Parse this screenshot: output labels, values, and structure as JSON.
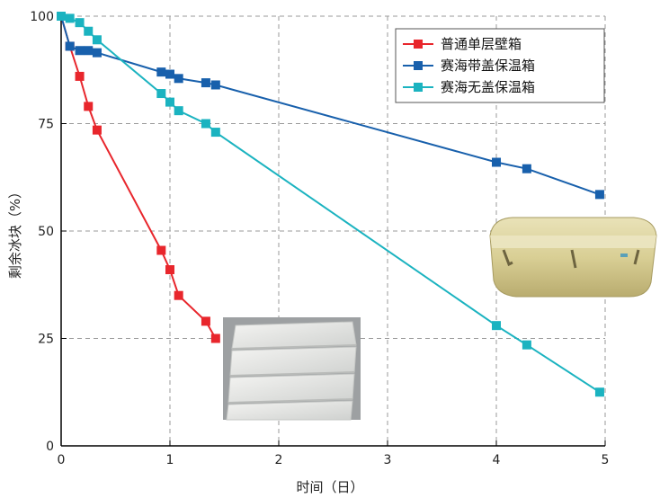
{
  "chart_data": {
    "type": "line",
    "xlabel": "时间（日）",
    "ylabel": "剩余冰块（%）",
    "xlim": [
      0,
      5
    ],
    "ylim": [
      0,
      100
    ],
    "x_ticks": [
      "0",
      "1",
      "2",
      "3",
      "4",
      "5"
    ],
    "y_ticks": [
      "0",
      "25",
      "50",
      "75",
      "100"
    ],
    "grid": true,
    "legend_position": "top-right",
    "series": [
      {
        "name": "普通单层壁箱",
        "color": "#e8262c",
        "x": [
          0,
          0.08,
          0.17,
          0.25,
          0.33,
          0.92,
          1.0,
          1.08,
          1.33,
          1.42
        ],
        "y": [
          100,
          93,
          86,
          79,
          73.5,
          45.5,
          41,
          35,
          29,
          25
        ]
      },
      {
        "name": "赛海带盖保温箱",
        "color": "#1860ac",
        "x": [
          0,
          0.08,
          0.17,
          0.25,
          0.33,
          0.92,
          1.0,
          1.08,
          1.33,
          1.42,
          4.0,
          4.28,
          4.95
        ],
        "y": [
          100,
          93,
          92,
          92,
          91.5,
          87,
          86.5,
          85.5,
          84.5,
          84,
          66,
          64.5,
          58.5
        ]
      },
      {
        "name": "赛海无盖保温箱",
        "color": "#1bb3c0",
        "x": [
          0,
          0.08,
          0.17,
          0.25,
          0.33,
          0.92,
          1.0,
          1.08,
          1.33,
          1.42,
          4.0,
          4.28,
          4.95
        ],
        "y": [
          100,
          99.5,
          98.5,
          96.5,
          94.5,
          82,
          80,
          78,
          75,
          73,
          28,
          23.5,
          12.5
        ]
      }
    ]
  },
  "photos": {
    "plain_box": "stacked-white-plastic-boxes-photo",
    "insulated_box": "beige-insulated-box-photo"
  }
}
